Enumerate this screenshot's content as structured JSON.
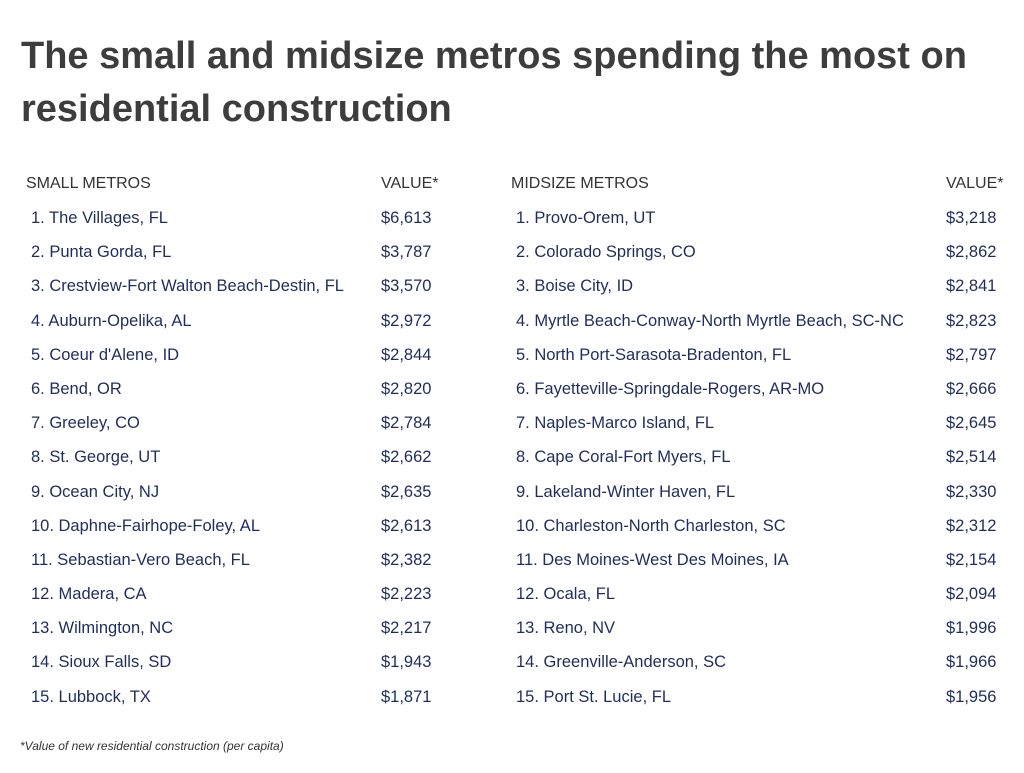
{
  "title": "The small and midsize metros spending the most on residential construction",
  "footnote": "*Value of new residential construction (per capita)",
  "chart_data": [
    {
      "type": "table",
      "columns": [
        "SMALL METROS",
        "VALUE*"
      ],
      "rows": [
        {
          "metro": "1. The Villages, FL",
          "value": "$6,613"
        },
        {
          "metro": "2. Punta Gorda, FL",
          "value": "$3,787"
        },
        {
          "metro": "3. Crestview-Fort Walton Beach-Destin, FL",
          "value": "$3,570"
        },
        {
          "metro": "4. Auburn-Opelika, AL",
          "value": "$2,972"
        },
        {
          "metro": "5. Coeur d'Alene, ID",
          "value": "$2,844"
        },
        {
          "metro": "6. Bend, OR",
          "value": "$2,820"
        },
        {
          "metro": "7. Greeley, CO",
          "value": "$2,784"
        },
        {
          "metro": "8. St. George, UT",
          "value": "$2,662"
        },
        {
          "metro": "9. Ocean City, NJ",
          "value": "$2,635"
        },
        {
          "metro": "10. Daphne-Fairhope-Foley, AL",
          "value": "$2,613"
        },
        {
          "metro": "11. Sebastian-Vero Beach, FL",
          "value": "$2,382"
        },
        {
          "metro": "12. Madera, CA",
          "value": "$2,223"
        },
        {
          "metro": "13. Wilmington, NC",
          "value": "$2,217"
        },
        {
          "metro": "14. Sioux Falls, SD",
          "value": "$1,943"
        },
        {
          "metro": "15. Lubbock, TX",
          "value": "$1,871"
        }
      ]
    },
    {
      "type": "table",
      "columns": [
        "MIDSIZE METROS",
        "VALUE*"
      ],
      "rows": [
        {
          "metro": "1. Provo-Orem, UT",
          "value": "$3,218"
        },
        {
          "metro": "2. Colorado Springs, CO",
          "value": "$2,862"
        },
        {
          "metro": "3. Boise City, ID",
          "value": "$2,841"
        },
        {
          "metro": "4. Myrtle Beach-Conway-North Myrtle Beach, SC-NC",
          "value": "$2,823"
        },
        {
          "metro": "5. North Port-Sarasota-Bradenton, FL",
          "value": "$2,797"
        },
        {
          "metro": "6. Fayetteville-Springdale-Rogers, AR-MO",
          "value": "$2,666"
        },
        {
          "metro": "7. Naples-Marco Island, FL",
          "value": "$2,645"
        },
        {
          "metro": "8. Cape Coral-Fort Myers, FL",
          "value": "$2,514"
        },
        {
          "metro": "9. Lakeland-Winter Haven, FL",
          "value": "$2,330"
        },
        {
          "metro": "10. Charleston-North Charleston, SC",
          "value": "$2,312"
        },
        {
          "metro": "11. Des Moines-West Des Moines, IA",
          "value": "$2,154"
        },
        {
          "metro": "12. Ocala, FL",
          "value": "$2,094"
        },
        {
          "metro": "13. Reno, NV",
          "value": "$1,996"
        },
        {
          "metro": "14. Greenville-Anderson, SC",
          "value": "$1,966"
        },
        {
          "metro": "15. Port St. Lucie, FL",
          "value": "$1,956"
        }
      ]
    }
  ]
}
